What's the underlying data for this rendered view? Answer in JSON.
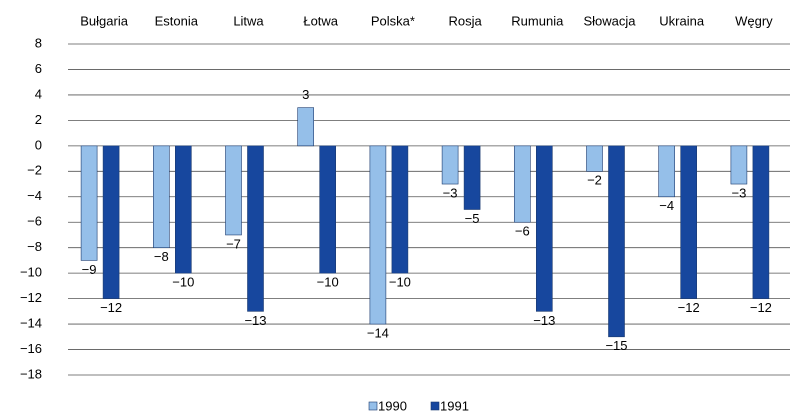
{
  "chart_data": {
    "type": "bar",
    "categories": [
      "Bułgaria",
      "Estonia",
      "Litwa",
      "Łotwa",
      "Polska*",
      "Rosja",
      "Rumunia",
      "Słowacja",
      "Ukraina",
      "Węgry"
    ],
    "series": [
      {
        "name": "1990",
        "color": "#95bfe9",
        "values": [
          -9,
          -8,
          -7,
          3,
          -14,
          -3,
          -6,
          -2,
          -4,
          -3
        ],
        "value_labels": [
          "−9",
          "−8",
          "−7",
          "3",
          "−14",
          "−3",
          "−6",
          "−2",
          "−4",
          "−3"
        ]
      },
      {
        "name": "1991",
        "color": "#17479e",
        "values": [
          -12,
          -10,
          -13,
          -10,
          -10,
          -5,
          -13,
          -15,
          -12,
          -12
        ],
        "value_labels": [
          "−12",
          "−10",
          "−13",
          "−10",
          "−10",
          "−5",
          "−13",
          "−15",
          "−12",
          "−12"
        ]
      }
    ],
    "ylim": [
      -18,
      8
    ],
    "yticks": [
      8,
      6,
      4,
      2,
      0,
      {
        "value": -2,
        "label": "−2"
      },
      {
        "value": -4,
        "label": "−4"
      },
      {
        "value": -6,
        "label": "−6"
      },
      {
        "value": -8,
        "label": "−8"
      },
      {
        "value": -10,
        "label": "−10"
      },
      {
        "value": -12,
        "label": "−12"
      },
      {
        "value": -14,
        "label": "−14"
      },
      {
        "value": -16,
        "label": "−16"
      },
      {
        "value": -18,
        "label": "−18"
      }
    ],
    "grid": true
  }
}
